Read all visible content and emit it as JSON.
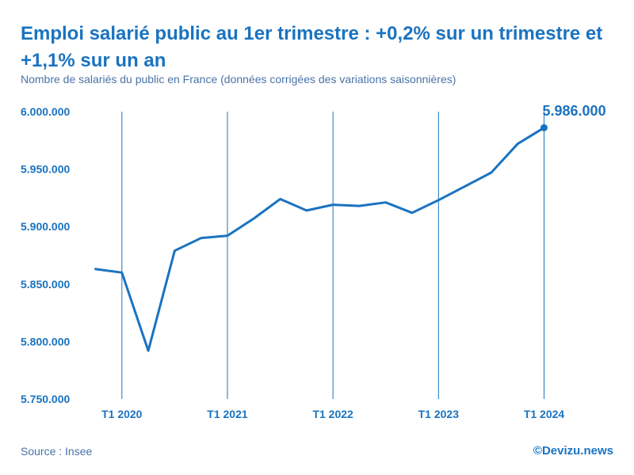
{
  "header": {
    "title": "Emploi salarié public au 1er trimestre : +0,2% sur un trimestre et +1,1% sur un an",
    "subtitle": "Nombre de salariés du public en France (données corrigées des variations saisonnières)"
  },
  "footer": {
    "source": "Source : Insee",
    "credit": "©Devizu.news"
  },
  "colors": {
    "line": "#1a73c0",
    "text": "#1a73c0",
    "muted": "#4a73a8"
  },
  "chart_data": {
    "type": "line",
    "title": "Emploi salarié public au 1er trimestre : +0,2% sur un trimestre et +1,1% sur un an",
    "subtitle": "Nombre de salariés du public en France (données corrigées des variations saisonnières)",
    "xlabel": "",
    "ylabel": "",
    "x": [
      "T4 2019",
      "T1 2020",
      "T2 2020",
      "T3 2020",
      "T4 2020",
      "T1 2021",
      "T2 2021",
      "T3 2021",
      "T4 2021",
      "T1 2022",
      "T2 2022",
      "T3 2022",
      "T4 2022",
      "T1 2023",
      "T2 2023",
      "T3 2023",
      "T4 2023",
      "T1 2024"
    ],
    "series": [
      {
        "values": [
          5863000,
          5860000,
          5792000,
          5879000,
          5890000,
          5892000,
          5907000,
          5924000,
          5914000,
          5919000,
          5918000,
          5921000,
          5912000,
          5923000,
          5935000,
          5947000,
          5972000,
          5986000
        ]
      }
    ],
    "ylim": [
      5750000,
      6000000
    ],
    "yticks": [
      {
        "value": 6000000,
        "label": "6.000.000"
      },
      {
        "value": 5950000,
        "label": "5.950.000"
      },
      {
        "value": 5900000,
        "label": "5.900.000"
      },
      {
        "value": 5850000,
        "label": "5.850.000"
      },
      {
        "value": 5800000,
        "label": "5.800.000"
      },
      {
        "value": 5750000,
        "label": "5.750.000"
      }
    ],
    "xticks": [
      {
        "index": 1,
        "label": "T1 2020"
      },
      {
        "index": 5,
        "label": "T1 2021"
      },
      {
        "index": 9,
        "label": "T1 2022"
      },
      {
        "index": 13,
        "label": "T1 2023"
      },
      {
        "index": 17,
        "label": "T1 2024"
      }
    ],
    "annotations": [
      {
        "index": 17,
        "label": "5.986.000"
      }
    ],
    "grid": "vertical lines at T1 quarters",
    "legend": "none"
  }
}
